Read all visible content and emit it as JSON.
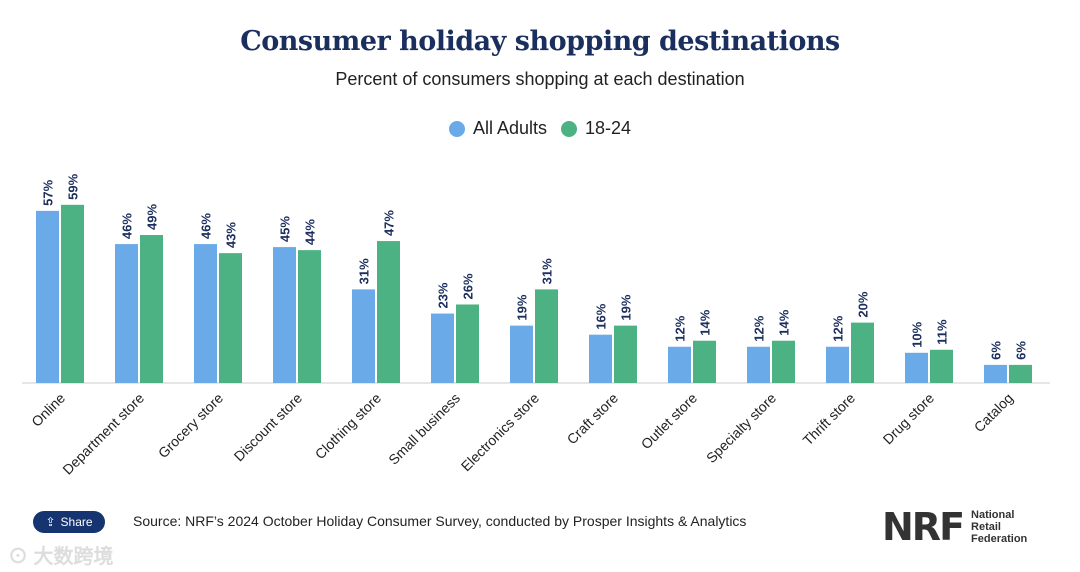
{
  "chart_data": {
    "type": "bar",
    "title": "Consumer holiday shopping destinations",
    "subtitle": "Percent of consumers shopping at each destination",
    "categories": [
      "Online",
      "Department store",
      "Grocery store",
      "Discount store",
      "Clothing store",
      "Small business",
      "Electronics store",
      "Craft store",
      "Outlet store",
      "Specialty store",
      "Thrift store",
      "Drug store",
      "Catalog"
    ],
    "series": [
      {
        "name": "All Adults",
        "color": "#6aaae8",
        "values": [
          57,
          46,
          46,
          45,
          31,
          23,
          19,
          16,
          12,
          12,
          12,
          10,
          6
        ]
      },
      {
        "name": "18-24",
        "color": "#4db283",
        "values": [
          59,
          49,
          43,
          44,
          47,
          26,
          31,
          19,
          14,
          14,
          20,
          11,
          6
        ]
      }
    ],
    "value_suffix": "%",
    "ylim": [
      0,
      60
    ],
    "legend": "top-center",
    "grid": false
  },
  "share_label": "Share",
  "source": "Source: NRF’s 2024 October Holiday Consumer Survey, conducted by Prosper Insights & Analytics",
  "logo": {
    "mark": "NRF",
    "lines": [
      "National",
      "Retail",
      "Federation"
    ]
  },
  "watermark": "大数跨境"
}
